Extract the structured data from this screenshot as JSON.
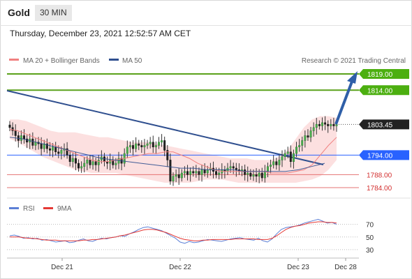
{
  "header": {
    "title": "Gold",
    "timeframe": "30 MIN"
  },
  "timestamp": "Thursday, December 23, 2021 12:52:57 AM CET",
  "legend": {
    "bb_label": "MA 20 + Bollinger Bands",
    "ma50_label": "MA 50",
    "credit": "Research © 2021 Trading Central",
    "rsi_label": "RSI",
    "rsi_ma_label": "9MA"
  },
  "colors": {
    "up": "#4caf50",
    "down": "#222222",
    "support": "#e57373",
    "pivot": "#2962ff",
    "ma50": "#2f4f8f",
    "band": "#fbdada",
    "rsi": "#5b7fd6",
    "rsi_ma": "#e53935"
  },
  "chart_data": [
    {
      "type": "candlestick",
      "x_ticks": [
        "Dec 21",
        "Dec 22",
        "Dec 23",
        "Dec 28"
      ],
      "ylim": [
        1781,
        1822
      ],
      "levels": [
        {
          "value": 1819.0,
          "label": "1819.00",
          "kind": "resistance"
        },
        {
          "value": 1814.0,
          "label": "1814.00",
          "kind": "resistance"
        },
        {
          "value": 1803.45,
          "label": "1803.45",
          "kind": "last"
        },
        {
          "value": 1794.0,
          "label": "1794.00",
          "kind": "pivot"
        },
        {
          "value": 1788.0,
          "label": "1788.00",
          "kind": "support"
        },
        {
          "value": 1784.0,
          "label": "1784.00",
          "kind": "support"
        }
      ],
      "closes": [
        1802.5,
        1801.5,
        1800.0,
        1798.5,
        1800.0,
        1799.0,
        1798.0,
        1799.0,
        1797.0,
        1798.0,
        1797.5,
        1796.0,
        1797.5,
        1796.0,
        1795.5,
        1796.5,
        1795.0,
        1794.5,
        1795.5,
        1796.0,
        1794.0,
        1792.0,
        1793.0,
        1791.5,
        1790.0,
        1790.5,
        1791.5,
        1792.5,
        1791.0,
        1792.0,
        1791.0,
        1792.5,
        1793.5,
        1792.0,
        1791.5,
        1792.5,
        1791.0,
        1791.5,
        1793.0,
        1791.5,
        1794.5,
        1796.5,
        1797.0,
        1796.0,
        1797.5,
        1797.0,
        1796.5,
        1797.0,
        1797.5,
        1798.0,
        1796.5,
        1797.0,
        1798.0,
        1798.5,
        1795.5,
        1792.5,
        1786.0,
        1787.5,
        1788.0,
        1787.0,
        1788.5,
        1789.0,
        1788.0,
        1789.0,
        1788.5,
        1789.0,
        1788.0,
        1789.5,
        1788.5,
        1789.5,
        1790.0,
        1789.0,
        1788.0,
        1788.5,
        1789.5,
        1789.0,
        1790.0,
        1790.5,
        1790.0,
        1789.5,
        1789.0,
        1789.5,
        1788.0,
        1788.5,
        1787.5,
        1788.0,
        1787.5,
        1788.5,
        1787.0,
        1789.0,
        1790.5,
        1791.0,
        1792.0,
        1791.0,
        1792.5,
        1793.5,
        1794.5,
        1795.0,
        1792.0,
        1794.5,
        1796.5,
        1797.0,
        1798.5,
        1800.0,
        1799.5,
        1801.5,
        1802.5,
        1803.5,
        1803.0,
        1804.0,
        1803.5,
        1803.0,
        1803.5,
        1803.0,
        1803.45
      ],
      "ma20": [
        1802.0,
        1801.5,
        1800.5,
        1799.5,
        1798.5,
        1797.5,
        1796.5,
        1795.5,
        1794.5,
        1793.5,
        1792.5,
        1792.0,
        1792.0,
        1792.5,
        1793.0,
        1793.5,
        1794.0,
        1794.5,
        1794.5,
        1795.0,
        1795.0,
        1794.0,
        1793.0,
        1791.5,
        1790.5,
        1789.5,
        1789.0,
        1789.0,
        1789.0,
        1789.0,
        1789.0,
        1789.0,
        1788.5,
        1788.5,
        1788.5,
        1789.0,
        1789.5,
        1791.0,
        1794.0,
        1797.0,
        1799.5
      ],
      "ma50": [
        1799.5,
        1799.0,
        1798.0,
        1797.0,
        1796.0,
        1795.0,
        1794.0,
        1793.0,
        1792.5,
        1792.0,
        1791.5,
        1791.0,
        1790.5,
        1790.0,
        1790.0,
        1789.5,
        1789.5,
        1789.5,
        1789.0,
        1789.0,
        1789.0,
        1789.0,
        1789.5,
        1790.5,
        1791.5
      ],
      "bb_upper": [
        1805.0,
        1805.0,
        1804.5,
        1803.5,
        1802.5,
        1801.5,
        1801.0,
        1801.0,
        1801.0,
        1800.5,
        1800.0,
        1799.5,
        1799.5,
        1799.0,
        1798.5,
        1798.0,
        1798.0,
        1798.0,
        1797.5,
        1797.0,
        1796.5,
        1796.0,
        1795.5,
        1795.0,
        1794.5,
        1794.0,
        1793.5,
        1793.0,
        1793.0,
        1793.0,
        1792.5,
        1792.5,
        1792.5,
        1793.5,
        1795.5,
        1799.0,
        1802.5,
        1805.0,
        1806.0,
        1806.0,
        1805.5
      ],
      "bb_lower": [
        1799.0,
        1798.0,
        1796.5,
        1795.0,
        1793.5,
        1792.5,
        1791.5,
        1790.5,
        1789.5,
        1789.0,
        1788.5,
        1788.5,
        1788.5,
        1788.5,
        1788.0,
        1787.5,
        1787.0,
        1786.5,
        1786.0,
        1785.5,
        1785.5,
        1785.5,
        1785.5,
        1786.0,
        1786.5,
        1786.5,
        1786.5,
        1786.0,
        1785.5,
        1785.5,
        1785.5,
        1785.5,
        1785.5,
        1785.5,
        1785.5,
        1785.5,
        1786.0,
        1786.5,
        1787.5,
        1789.5,
        1792.5
      ]
    },
    {
      "type": "line",
      "name": "RSI",
      "ylim": [
        20,
        85
      ],
      "y_ticks": [
        70,
        50,
        30
      ],
      "rsi": [
        52,
        53,
        51,
        48,
        49,
        47,
        48,
        45,
        46,
        44,
        42,
        43,
        44,
        41,
        42,
        45,
        47,
        44,
        43,
        46,
        48,
        47,
        49,
        50,
        52,
        51,
        55,
        58,
        62,
        65,
        66,
        64,
        62,
        60,
        56,
        52,
        48,
        42,
        40,
        43,
        41,
        42,
        44,
        46,
        45,
        44,
        43,
        45,
        47,
        48,
        49,
        47,
        46,
        45,
        48,
        44,
        42,
        47,
        55,
        62,
        65,
        66,
        67,
        69,
        72,
        74,
        76,
        78,
        75,
        72,
        73,
        70
      ],
      "rsi_ma": [
        50,
        50,
        50,
        49,
        48,
        48,
        47,
        46,
        45,
        45,
        45,
        44,
        44,
        44,
        44,
        44,
        45,
        45,
        46,
        46,
        47,
        48,
        49,
        50,
        52,
        53,
        55,
        57,
        59,
        61,
        62,
        62,
        61,
        59,
        57,
        54,
        51,
        48,
        46,
        45,
        44,
        44,
        45,
        45,
        46,
        46,
        46,
        46,
        46,
        47,
        47,
        47,
        47,
        47,
        46,
        46,
        46,
        48,
        52,
        57,
        62,
        65,
        67,
        68,
        70,
        72,
        73,
        74,
        74,
        73,
        73,
        72
      ]
    }
  ]
}
